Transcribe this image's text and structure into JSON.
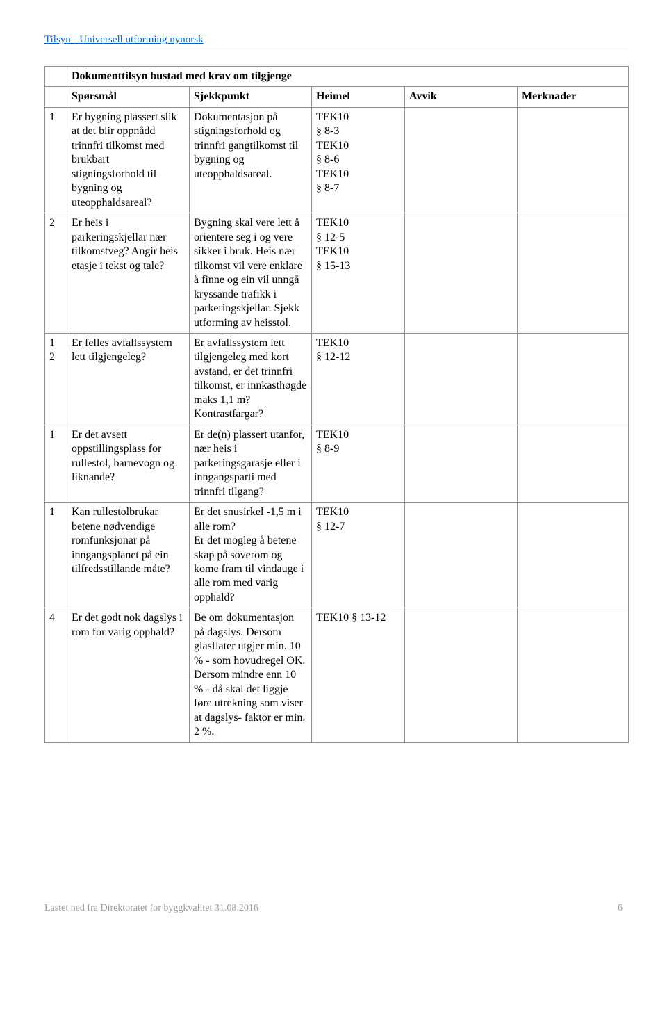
{
  "header": {
    "link_text": "Tilsyn - Universell utforming nynorsk"
  },
  "title": "Dokumenttilsyn bustad med krav om tilgjenge",
  "columns": {
    "c1": "",
    "c2": "Spørsmål",
    "c3": "Sjekkpunkt",
    "c4": "Heimel",
    "c5": "Avvik",
    "c6": "Merknader"
  },
  "rows": [
    {
      "num": "1",
      "sporsmal": "Er bygning plassert slik at det blir oppnådd trinnfri tilkomst med brukbart stigningsforhold til bygning og uteopphaldsareal?",
      "sjekkpunkt": "Dokumentasjon på stigningsforhold og trinnfri gangtilkomst til bygning og uteopphaldsareal.",
      "heimel": "TEK10\n§ 8-3\nTEK10\n§ 8-6\nTEK10\n§ 8-7"
    },
    {
      "num": "2",
      "sporsmal": "Er heis i parkeringskjellar nær tilkomstveg? Angir heis etasje i tekst og tale?",
      "sjekkpunkt": "Bygning skal vere lett å orientere seg i og vere sikker i bruk. Heis nær tilkomst vil vere enklare å finne og ein vil unngå kryssande trafikk i parkeringskjellar. Sjekk utforming av heisstol.",
      "heimel": "TEK10\n§ 12-5\nTEK10\n§ 15-13"
    },
    {
      "num": "1\n2",
      "sporsmal": "Er felles avfallssystem lett tilgjengeleg?",
      "sjekkpunkt": "Er avfallssystem lett tilgjengeleg med kort avstand, er det trinnfri tilkomst, er innkasthøgde maks 1,1 m? Kontrastfargar?",
      "heimel": "TEK10\n § 12-12"
    },
    {
      "num": "1",
      "sporsmal": "Er det avsett oppstillingsplass for rullestol, barnevogn og liknande?",
      "sjekkpunkt": "Er de(n) plassert utanfor, nær heis i parkeringsgarasje eller i inngangsparti med trinnfri tilgang?",
      "heimel": "TEK10\n§ 8-9"
    },
    {
      "num": "1",
      "sporsmal": "Kan rullestolbrukar betene nødvendige romfunksjonar på inngangsplanet på ein tilfredsstillande måte?",
      "sjekkpunkt": "Er det snusirkel -1,5 m i alle rom?\nEr det mogleg å betene skap på soverom og kome fram til vindauge i alle rom med varig opphald?",
      "heimel": "TEK10\n§ 12-7"
    },
    {
      "num": "4",
      "sporsmal": "Er det godt nok dagslys i rom for varig opphald?",
      "sjekkpunkt": "Be om dokumentasjon på dagslys. Dersom glasflater utgjer min. 10 % - som hovudregel OK. Dersom mindre enn 10 % - då skal det liggje føre utrekning som viser at dagslys- faktor er min. 2 %.",
      "heimel": "TEK10 § 13-12"
    }
  ],
  "footer": {
    "text": "Lastet ned fra Direktoratet for byggkvalitet 31.08.2016",
    "page": "6"
  }
}
